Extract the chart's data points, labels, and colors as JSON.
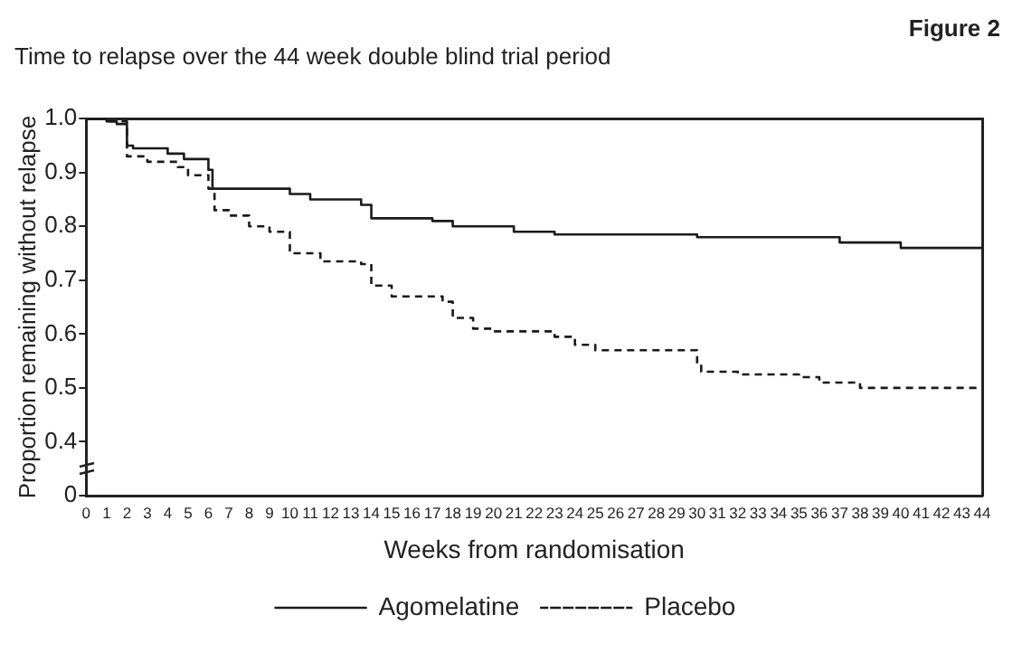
{
  "chart_data": {
    "type": "step",
    "title": "Time to relapse over the 44 week double blind trial period",
    "annotations": [
      "Figure 2"
    ],
    "xlabel": "Weeks from randomisation",
    "ylabel": "Proportion remaining without relapse",
    "xlim": [
      0,
      44
    ],
    "xticks": [
      0,
      1,
      2,
      3,
      4,
      5,
      6,
      7,
      8,
      9,
      10,
      11,
      12,
      13,
      14,
      15,
      16,
      17,
      18,
      19,
      20,
      21,
      22,
      23,
      24,
      25,
      26,
      27,
      28,
      29,
      30,
      31,
      32,
      33,
      34,
      35,
      36,
      37,
      38,
      39,
      40,
      41,
      42,
      43,
      44
    ],
    "ylim": [
      0.3,
      1.0
    ],
    "yticks": [
      {
        "value": 0.3,
        "label": "0"
      },
      0.4,
      0.5,
      0.6,
      0.7,
      0.8,
      0.9,
      {
        "value": 1.0,
        "label": "1.0"
      }
    ],
    "grid": false,
    "legend": "bottom",
    "marker": "none",
    "series": [
      {
        "name": "Agomelatine",
        "color": "#1a1a1a",
        "line_style": "solid",
        "x": [
          0,
          1,
          1.5,
          2,
          2.3,
          4,
          4.8,
          6,
          6.2,
          10,
          11,
          13.5,
          14,
          17,
          18,
          21,
          23,
          30,
          37,
          40,
          44
        ],
        "values": [
          1.0,
          0.995,
          0.99,
          0.95,
          0.945,
          0.935,
          0.925,
          0.905,
          0.87,
          0.86,
          0.85,
          0.84,
          0.815,
          0.81,
          0.8,
          0.79,
          0.785,
          0.78,
          0.77,
          0.76,
          0.758
        ]
      },
      {
        "name": "Placebo",
        "color": "#1a1a1a",
        "line_style": "dashed",
        "x": [
          0,
          1,
          2,
          3,
          4.5,
          5,
          6,
          6.3,
          7,
          8,
          9,
          10,
          11.5,
          13.5,
          14,
          15,
          17.5,
          18,
          19,
          20,
          23,
          24,
          25,
          30,
          30.2,
          32,
          35,
          36,
          38,
          44
        ],
        "values": [
          1.0,
          0.995,
          0.93,
          0.92,
          0.91,
          0.895,
          0.87,
          0.83,
          0.82,
          0.8,
          0.79,
          0.75,
          0.735,
          0.73,
          0.69,
          0.67,
          0.66,
          0.63,
          0.61,
          0.605,
          0.595,
          0.58,
          0.57,
          0.545,
          0.53,
          0.525,
          0.52,
          0.51,
          0.5,
          0.5
        ]
      }
    ]
  }
}
